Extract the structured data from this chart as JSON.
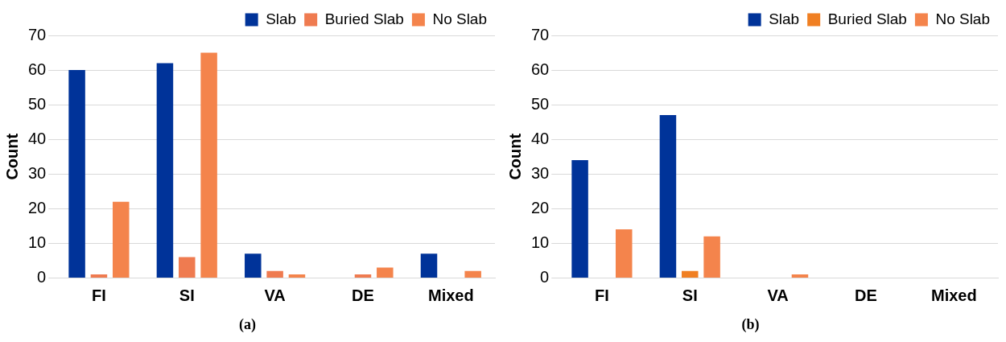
{
  "chart_data": [
    {
      "type": "bar",
      "title": "(a)",
      "ylabel": "Count",
      "categories": [
        "FI",
        "SI",
        "VA",
        "DE",
        "Mixed"
      ],
      "series": [
        {
          "name": "Slab",
          "color": "#003399",
          "values": [
            60,
            62,
            7,
            0,
            7
          ]
        },
        {
          "name": "Buried Slab",
          "color": "#ef7b50",
          "values": [
            1,
            6,
            2,
            1,
            0
          ]
        },
        {
          "name": "No Slab",
          "color": "#f4844c",
          "values": [
            22,
            65,
            1,
            3,
            2
          ]
        }
      ],
      "ylim": [
        0,
        70
      ],
      "yticks": [
        0,
        10,
        20,
        30,
        40,
        50,
        60,
        70
      ],
      "grid": "y",
      "legend": "top right"
    },
    {
      "type": "bar",
      "title": "(b)",
      "ylabel": "Count",
      "categories": [
        "FI",
        "SI",
        "VA",
        "DE",
        "Mixed"
      ],
      "series": [
        {
          "name": "Slab",
          "color": "#003399",
          "values": [
            34,
            47,
            0,
            0,
            0
          ]
        },
        {
          "name": "Buried Slab",
          "color": "#f07f22",
          "values": [
            0,
            2,
            0,
            0,
            0
          ]
        },
        {
          "name": "No Slab",
          "color": "#f4844c",
          "values": [
            14,
            12,
            1,
            0,
            0
          ]
        }
      ],
      "ylim": [
        0,
        70
      ],
      "yticks": [
        0,
        10,
        20,
        30,
        40,
        50,
        60,
        70
      ],
      "grid": "y",
      "legend": "top right"
    }
  ]
}
